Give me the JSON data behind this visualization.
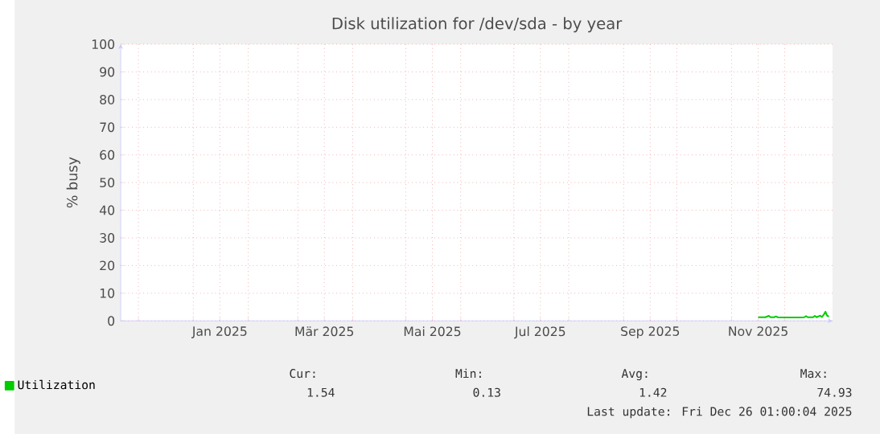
{
  "chart_data": {
    "type": "line",
    "title": "Disk utilization for /dev/sda - by year",
    "ylabel": "% busy",
    "x": [
      "2025-11-16",
      "2025-11-20",
      "2025-11-22",
      "2025-11-23",
      "2025-11-25",
      "2025-11-26",
      "2025-11-27",
      "2025-12-01",
      "2025-12-05",
      "2025-12-09",
      "2025-12-12",
      "2025-12-13",
      "2025-12-14",
      "2025-12-17",
      "2025-12-18",
      "2025-12-19",
      "2025-12-21",
      "2025-12-22",
      "2025-12-23",
      "2025-12-24",
      "2025-12-25",
      "2025-12-26"
    ],
    "series": [
      {
        "name": "Utilization",
        "color": "#00cc00",
        "values": [
          1.3,
          1.3,
          1.8,
          1.3,
          1.3,
          1.6,
          1.3,
          1.2,
          1.2,
          1.2,
          1.3,
          1.7,
          1.3,
          1.3,
          1.8,
          1.3,
          1.9,
          1.4,
          2.2,
          3.3,
          1.8,
          1.6
        ]
      }
    ],
    "xlim": [
      "2024-11-21",
      "2025-12-28"
    ],
    "xticks": [
      {
        "value": "2024-12-01",
        "label": null
      },
      {
        "value": "2025-01-01",
        "label": null
      },
      {
        "value": "2025-01-16",
        "label": "Jan 2025"
      },
      {
        "value": "2025-02-01",
        "label": null
      },
      {
        "value": "2025-03-01",
        "label": null
      },
      {
        "value": "2025-03-16",
        "label": "Mär 2025"
      },
      {
        "value": "2025-04-01",
        "label": null
      },
      {
        "value": "2025-05-01",
        "label": null
      },
      {
        "value": "2025-05-16",
        "label": "Mai 2025"
      },
      {
        "value": "2025-06-01",
        "label": null
      },
      {
        "value": "2025-07-01",
        "label": null
      },
      {
        "value": "2025-07-16",
        "label": "Jul 2025"
      },
      {
        "value": "2025-08-01",
        "label": null
      },
      {
        "value": "2025-09-01",
        "label": null
      },
      {
        "value": "2025-09-16",
        "label": "Sep 2025"
      },
      {
        "value": "2025-10-01",
        "label": null
      },
      {
        "value": "2025-11-01",
        "label": null
      },
      {
        "value": "2025-11-16",
        "label": "Nov 2025"
      },
      {
        "value": "2025-12-01",
        "label": null
      }
    ],
    "ylim": [
      0,
      100
    ],
    "yticks": [
      0,
      10,
      20,
      30,
      40,
      50,
      60,
      70,
      80,
      90,
      100
    ],
    "grid": true,
    "legend": "bottom left",
    "marker": "none",
    "line_style": "solid",
    "annotations": [
      "Cur:",
      "Min:",
      "Avg:",
      "Max:",
      "1.54",
      "0.13",
      "1.42",
      "74.93",
      "Last update: Fri Dec 26 01:00:04 2025"
    ]
  }
}
